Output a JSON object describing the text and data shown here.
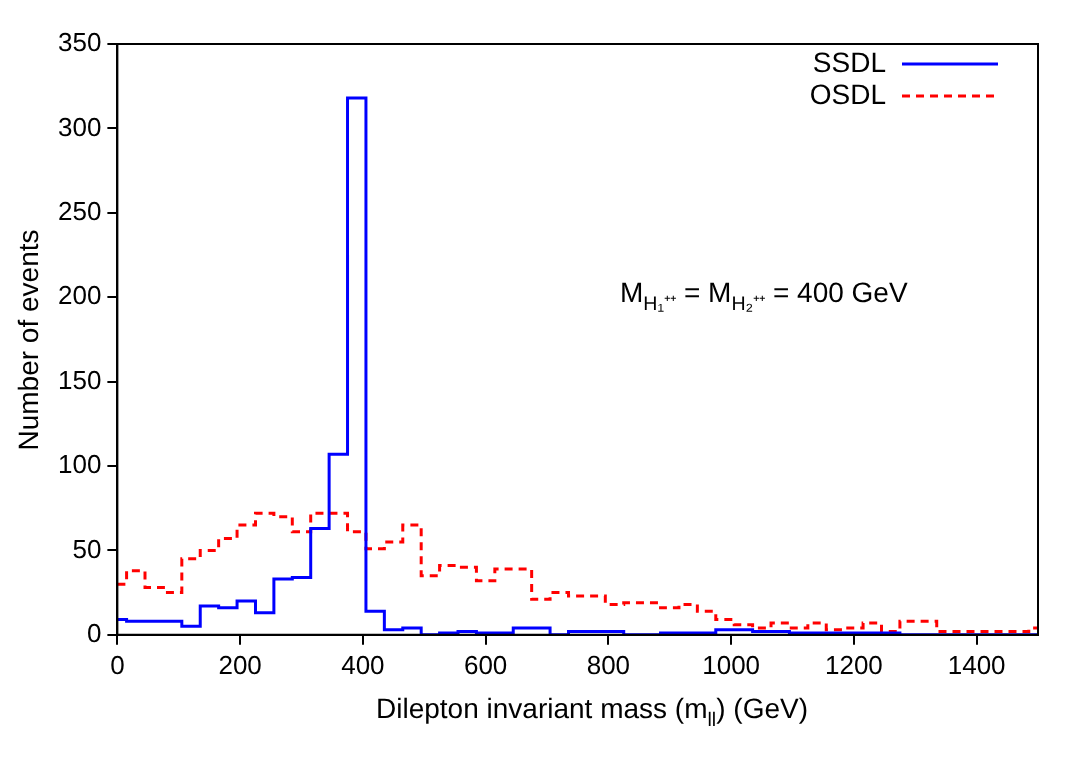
{
  "chart_data": {
    "type": "histogram",
    "xlabel": "Dilepton invariant mass (m$_{ll}$) (GeV)",
    "ylabel": "Number of events",
    "annotations": [
      "M$_{H₁⁺⁺}$ = M$_{H₂⁺⁺}$ = 400 GeV"
    ],
    "bins": [
      0,
      15,
      45,
      75,
      105,
      135,
      165,
      195,
      225,
      255,
      285,
      315,
      345,
      375,
      405,
      435,
      465,
      495,
      525,
      555,
      585,
      615,
      645,
      675,
      705,
      735,
      765,
      795,
      825,
      855,
      885,
      915,
      945,
      975,
      1005,
      1035,
      1065,
      1095,
      1125,
      1155,
      1185,
      1215,
      1245,
      1275,
      1305,
      1335,
      1365,
      1395,
      1425,
      1455,
      1485,
      1500
    ],
    "series": [
      {
        "name": "SSDL",
        "color": "#0000ff",
        "line_style": "solid",
        "values": [
          9,
          8,
          8,
          8,
          5,
          17,
          16,
          20,
          13,
          33,
          34,
          63,
          107,
          318,
          14,
          3,
          4,
          0,
          1,
          2,
          1,
          1,
          4,
          4,
          0,
          2,
          2,
          2,
          0,
          0,
          1,
          1,
          1,
          3,
          3,
          2,
          2,
          1,
          1,
          1,
          1,
          1,
          1,
          0,
          0,
          0,
          0,
          0,
          0,
          0,
          0
        ]
      },
      {
        "name": "OSDL",
        "color": "#ff0000",
        "line_style": "dashed",
        "values": [
          30,
          38,
          28,
          25,
          45,
          50,
          57,
          65,
          72,
          70,
          61,
          72,
          72,
          61,
          51,
          55,
          65,
          35,
          41,
          40,
          32,
          39,
          39,
          21,
          25,
          23,
          23,
          18,
          19,
          19,
          16,
          18,
          14,
          9,
          6,
          4,
          7,
          4,
          7,
          3,
          4,
          7,
          2,
          8,
          8,
          2,
          2,
          2,
          2,
          2,
          4
        ]
      }
    ],
    "xlim": [
      0,
      1500
    ],
    "xticks": [
      0,
      200,
      400,
      600,
      800,
      1000,
      1200,
      1400
    ],
    "ylim": [
      0,
      350
    ],
    "yticks": [
      0,
      50,
      100,
      150,
      200,
      250,
      300,
      350
    ],
    "legend": "top right"
  }
}
